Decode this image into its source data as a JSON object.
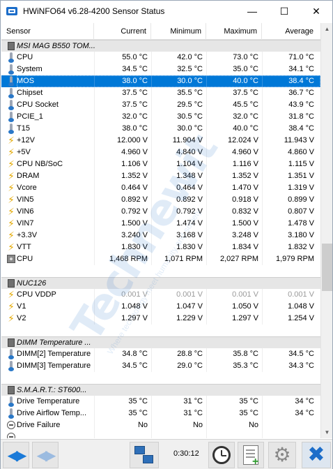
{
  "window": {
    "title": "HWiNFO64 v6.28-4200 Sensor Status"
  },
  "columns": {
    "sensor": "Sensor",
    "current": "Current",
    "minimum": "Minimum",
    "maximum": "Maximum",
    "average": "Average"
  },
  "rows": [
    {
      "type": "group",
      "name": "MSI MAG B550 TOM...",
      "icon": "chip-icon"
    },
    {
      "name": "CPU",
      "icon": "thermometer-icon",
      "current": "55.0 °C",
      "minimum": "42.0 °C",
      "maximum": "73.0 °C",
      "average": "71.0 °C"
    },
    {
      "name": "System",
      "icon": "thermometer-icon",
      "current": "34.5 °C",
      "minimum": "32.5 °C",
      "maximum": "35.0 °C",
      "average": "34.1 °C"
    },
    {
      "name": "MOS",
      "icon": "thermometer-icon",
      "current": "38.0 °C",
      "minimum": "30.0 °C",
      "maximum": "40.0 °C",
      "average": "38.4 °C",
      "selected": true
    },
    {
      "name": "Chipset",
      "icon": "thermometer-icon",
      "current": "37.5 °C",
      "minimum": "35.5 °C",
      "maximum": "37.5 °C",
      "average": "36.7 °C"
    },
    {
      "name": "CPU Socket",
      "icon": "thermometer-icon",
      "current": "37.5 °C",
      "minimum": "29.5 °C",
      "maximum": "45.5 °C",
      "average": "43.9 °C"
    },
    {
      "name": "PCIE_1",
      "icon": "thermometer-icon",
      "current": "32.0 °C",
      "minimum": "30.5 °C",
      "maximum": "32.0 °C",
      "average": "31.8 °C"
    },
    {
      "name": "T15",
      "icon": "thermometer-icon",
      "current": "38.0 °C",
      "minimum": "30.0 °C",
      "maximum": "40.0 °C",
      "average": "38.4 °C"
    },
    {
      "name": "+12V",
      "icon": "voltage-icon",
      "current": "12.000 V",
      "minimum": "11.904 V",
      "maximum": "12.024 V",
      "average": "11.943 V"
    },
    {
      "name": "+5V",
      "icon": "voltage-icon",
      "current": "4.960 V",
      "minimum": "4.840 V",
      "maximum": "4.960 V",
      "average": "4.860 V"
    },
    {
      "name": "CPU NB/SoC",
      "icon": "voltage-icon",
      "current": "1.106 V",
      "minimum": "1.104 V",
      "maximum": "1.116 V",
      "average": "1.115 V"
    },
    {
      "name": "DRAM",
      "icon": "voltage-icon",
      "current": "1.352 V",
      "minimum": "1.348 V",
      "maximum": "1.352 V",
      "average": "1.351 V"
    },
    {
      "name": "Vcore",
      "icon": "voltage-icon",
      "current": "0.464 V",
      "minimum": "0.464 V",
      "maximum": "1.470 V",
      "average": "1.319 V"
    },
    {
      "name": "VIN5",
      "icon": "voltage-icon",
      "current": "0.892 V",
      "minimum": "0.892 V",
      "maximum": "0.918 V",
      "average": "0.899 V"
    },
    {
      "name": "VIN6",
      "icon": "voltage-icon",
      "current": "0.792 V",
      "minimum": "0.792 V",
      "maximum": "0.832 V",
      "average": "0.807 V"
    },
    {
      "name": "VIN7",
      "icon": "voltage-icon",
      "current": "1.500 V",
      "minimum": "1.474 V",
      "maximum": "1.500 V",
      "average": "1.478 V"
    },
    {
      "name": "+3.3V",
      "icon": "voltage-icon",
      "current": "3.240 V",
      "minimum": "3.168 V",
      "maximum": "3.248 V",
      "average": "3.180 V"
    },
    {
      "name": "VTT",
      "icon": "voltage-icon",
      "current": "1.830 V",
      "minimum": "1.830 V",
      "maximum": "1.834 V",
      "average": "1.832 V"
    },
    {
      "name": "CPU",
      "icon": "fan-icon",
      "current": "1,468 RPM",
      "minimum": "1,071 RPM",
      "maximum": "2,027 RPM",
      "average": "1,979 RPM"
    },
    {
      "type": "blank"
    },
    {
      "type": "group",
      "name": "NUC126",
      "icon": "chip-icon"
    },
    {
      "name": "CPU VDDP",
      "icon": "voltage-icon",
      "current": "0.001 V",
      "minimum": "0.001 V",
      "maximum": "0.001 V",
      "average": "0.001 V",
      "disabled": true
    },
    {
      "name": "V1",
      "icon": "voltage-icon",
      "current": "1.048 V",
      "minimum": "1.047 V",
      "maximum": "1.050 V",
      "average": "1.048 V"
    },
    {
      "name": "V2",
      "icon": "voltage-icon",
      "current": "1.297 V",
      "minimum": "1.229 V",
      "maximum": "1.297 V",
      "average": "1.254 V"
    },
    {
      "type": "blank"
    },
    {
      "type": "group",
      "name": "DIMM Temperature ...",
      "icon": "chip-icon"
    },
    {
      "name": "DIMM[2] Temperature",
      "icon": "thermometer-icon",
      "current": "34.8 °C",
      "minimum": "28.8 °C",
      "maximum": "35.8 °C",
      "average": "34.5 °C"
    },
    {
      "name": "DIMM[3] Temperature",
      "icon": "thermometer-icon",
      "current": "34.5 °C",
      "minimum": "29.0 °C",
      "maximum": "35.3 °C",
      "average": "34.3 °C"
    },
    {
      "type": "blank"
    },
    {
      "type": "group",
      "name": "S.M.A.R.T.: ST600...",
      "icon": "chip-icon"
    },
    {
      "name": "Drive Temperature",
      "icon": "thermometer-icon",
      "current": "35 °C",
      "minimum": "31 °C",
      "maximum": "35 °C",
      "average": "34 °C"
    },
    {
      "name": "Drive Airflow Temp...",
      "icon": "thermometer-icon",
      "current": "35 °C",
      "minimum": "31 °C",
      "maximum": "35 °C",
      "average": "34 °C"
    },
    {
      "name": "Drive Failure",
      "icon": "status-icon",
      "current": "No",
      "minimum": "No",
      "maximum": "No",
      "average": ""
    },
    {
      "name": "",
      "icon": "status-icon",
      "current": "",
      "minimum": "",
      "maximum": "",
      "average": ""
    }
  ],
  "watermark": {
    "brand": "Technewit",
    "tagline": "Where technology meet humanity and society"
  },
  "toolbar": {
    "timer": "0:30:12"
  }
}
